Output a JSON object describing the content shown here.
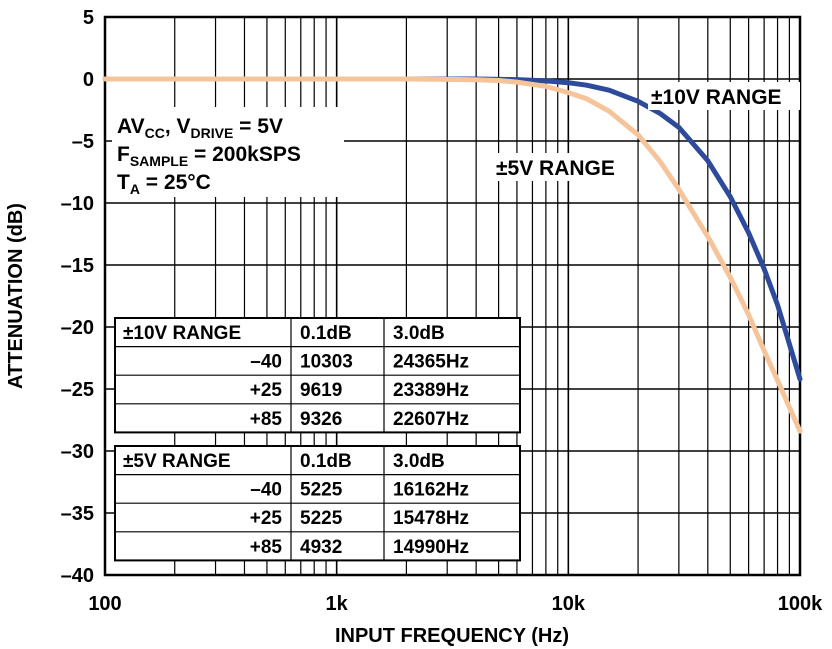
{
  "chart_data": {
    "type": "line",
    "xlabel": "INPUT FREQUENCY (Hz)",
    "ylabel": "ATTENUATION (dB)",
    "x_scale": "log",
    "xlim": [
      100,
      100000
    ],
    "ylim": [
      -40,
      5
    ],
    "x_ticks": [
      {
        "value": 100,
        "label": "100"
      },
      {
        "value": 1000,
        "label": "1k"
      },
      {
        "value": 10000,
        "label": "10k"
      },
      {
        "value": 100000,
        "label": "100k"
      }
    ],
    "y_ticks": [
      {
        "value": 5,
        "label": "5"
      },
      {
        "value": 0,
        "label": "0"
      },
      {
        "value": -5,
        "label": "–5"
      },
      {
        "value": -10,
        "label": "–10"
      },
      {
        "value": -15,
        "label": "–15"
      },
      {
        "value": -20,
        "label": "–20"
      },
      {
        "value": -25,
        "label": "–25"
      },
      {
        "value": -30,
        "label": "–30"
      },
      {
        "value": -35,
        "label": "–35"
      },
      {
        "value": -40,
        "label": "–40"
      }
    ],
    "grid": true,
    "series": [
      {
        "name": "±10V RANGE",
        "color": "#2e4a9a",
        "x": [
          100,
          1000,
          4000,
          6000,
          8000,
          10000,
          12000,
          15000,
          20000,
          25000,
          30000,
          40000,
          50000,
          60000,
          70000,
          80000,
          100000
        ],
        "y": [
          0,
          0,
          0,
          -0.05,
          -0.15,
          -0.3,
          -0.5,
          -0.9,
          -1.8,
          -2.8,
          -3.9,
          -6.6,
          -9.5,
          -12.4,
          -15.3,
          -18.2,
          -24.2
        ]
      },
      {
        "name": "±5V RANGE",
        "color": "#f5c49a",
        "x": [
          100,
          1000,
          2000,
          3000,
          4000,
          5000,
          6000,
          8000,
          10000,
          12000,
          15000,
          20000,
          25000,
          30000,
          40000,
          50000,
          60000,
          70000,
          80000,
          100000
        ],
        "y": [
          0,
          0,
          0,
          -0.03,
          -0.06,
          -0.12,
          -0.25,
          -0.6,
          -1.1,
          -1.6,
          -2.6,
          -4.5,
          -6.7,
          -8.9,
          -12.7,
          -16.0,
          -19.0,
          -21.9,
          -24.3,
          -28.4
        ]
      }
    ],
    "annotations": {
      "ten_v_label": "±10V RANGE",
      "five_v_label": "±5V RANGE",
      "cond_line1_pre": "AV",
      "cond_line1_sub1": "CC",
      "cond_line1_mid": ", V",
      "cond_line1_sub2": "DRIVE",
      "cond_line1_post": " = 5V",
      "cond_line2_pre": "F",
      "cond_line2_sub": "SAMPLE",
      "cond_line2_post": " = 200kSPS",
      "cond_line3_pre": "T",
      "cond_line3_sub": "A",
      "cond_line3_post": " = 25°C"
    },
    "tables": [
      {
        "header": [
          "±10V RANGE",
          "0.1dB",
          "3.0dB"
        ],
        "rows": [
          [
            "–40",
            "10303",
            "24365Hz"
          ],
          [
            "+25",
            "9619",
            "23389Hz"
          ],
          [
            "+85",
            "9326",
            "22607Hz"
          ]
        ]
      },
      {
        "header": [
          "±5V RANGE",
          "0.1dB",
          "3.0dB"
        ],
        "rows": [
          [
            "–40",
            "5225",
            "16162Hz"
          ],
          [
            "+25",
            "5225",
            "15478Hz"
          ],
          [
            "+85",
            "4932",
            "14990Hz"
          ]
        ]
      }
    ]
  }
}
